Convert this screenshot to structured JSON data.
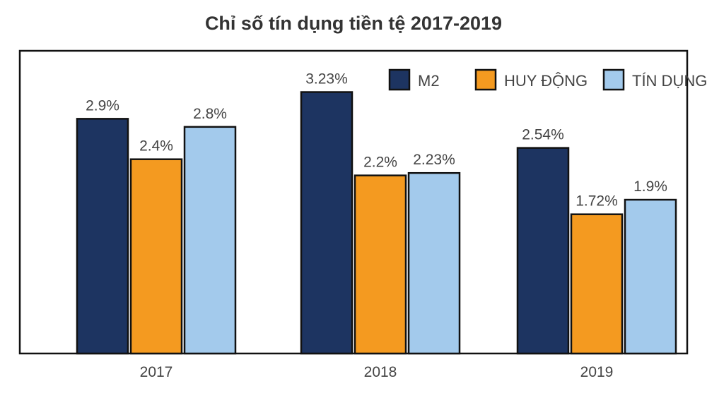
{
  "chart_data": {
    "type": "bar",
    "title": "Chỉ số tín dụng tiền tệ 2017-2019",
    "categories": [
      "2017",
      "2018",
      "2019"
    ],
    "series": [
      {
        "name": "M2",
        "values": [
          2.9,
          3.23,
          2.54
        ],
        "labels": [
          "2.9%",
          "3.23%",
          "2.54%"
        ],
        "color": "#1d3461"
      },
      {
        "name": "HUY ĐỘNG",
        "values": [
          2.4,
          2.2,
          1.72
        ],
        "labels": [
          "2.4%",
          "2.2%",
          "1.72%"
        ],
        "color": "#f49a20"
      },
      {
        "name": "TÍN DỤNG",
        "values": [
          2.8,
          2.23,
          1.9
        ],
        "labels": [
          "2.8%",
          "2.23%",
          "1.9%"
        ],
        "color": "#a3caec"
      }
    ],
    "xlabel": "",
    "ylabel": "",
    "ylim": [
      0,
      3.74
    ],
    "grid": false,
    "legend": "top-right"
  }
}
